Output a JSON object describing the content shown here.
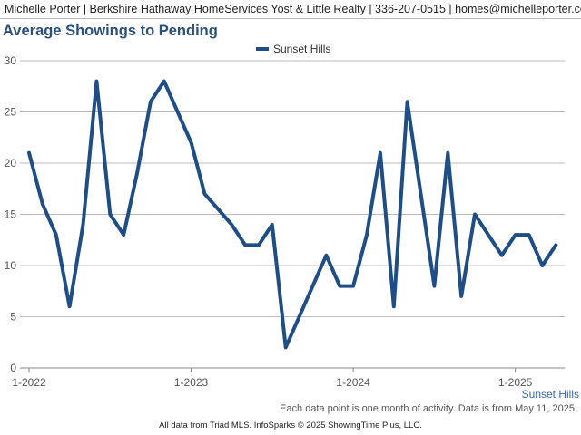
{
  "header": {
    "text": "Michelle Porter | Berkshire Hathaway HomeServices Yost & Little Realty | 336-207-0515 | homes@michelleporter.com"
  },
  "colors": {
    "series": "#1f4e87",
    "title": "#2c4f7c",
    "grid": "#bbbbbb",
    "corner_label": "#3b6aa8"
  },
  "chart_data": {
    "type": "line",
    "title": "Average Showings to Pending",
    "xlabel": "",
    "ylabel": "",
    "legend_position": "top-center",
    "grid": true,
    "ylim": [
      0,
      30
    ],
    "y_ticks": [
      "0",
      "5",
      "10",
      "15",
      "20",
      "25",
      "30"
    ],
    "x_tick_labels": [
      "1-2022",
      "1-2023",
      "1-2024",
      "1-2025"
    ],
    "x_tick_positions": [
      "2022-01",
      "2023-01",
      "2024-01",
      "2025-01"
    ],
    "x": [
      "2022-01",
      "2022-02",
      "2022-03",
      "2022-04",
      "2022-05",
      "2022-06",
      "2022-07",
      "2022-08",
      "2022-09",
      "2022-10",
      "2022-11",
      "2022-12",
      "2023-01",
      "2023-02",
      "2023-03",
      "2023-04",
      "2023-05",
      "2023-06",
      "2023-07",
      "2023-08",
      "2023-09",
      "2023-10",
      "2023-11",
      "2023-12",
      "2024-01",
      "2024-02",
      "2024-03",
      "2024-04",
      "2024-05",
      "2024-06",
      "2024-07",
      "2024-08",
      "2024-09",
      "2024-10",
      "2024-11",
      "2024-12",
      "2025-01",
      "2025-02",
      "2025-03",
      "2025-04"
    ],
    "series": [
      {
        "name": "Sunset Hills",
        "values": [
          21,
          16,
          13,
          6,
          14,
          28,
          15,
          13,
          19,
          26,
          28,
          25,
          22,
          17,
          15.5,
          14,
          12,
          12,
          14,
          2,
          5,
          8,
          11,
          8,
          8,
          13,
          21,
          6,
          26,
          17,
          8,
          21,
          7,
          15,
          13,
          11,
          13,
          13,
          10,
          12
        ]
      }
    ],
    "corner_label": "Sunset Hills",
    "note": "Each data point is one month of activity. Data is from May 11, 2025."
  },
  "footer": {
    "copyright": "All data from Triad MLS. InfoSparks © 2025 ShowingTime Plus, LLC."
  }
}
